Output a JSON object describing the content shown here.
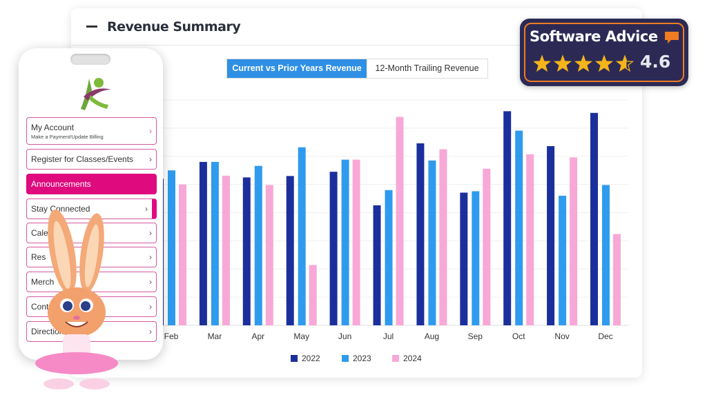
{
  "card": {
    "title": "Revenue Summary",
    "collapse_icon": "minus-icon"
  },
  "toggle": {
    "active": "Current vs Prior Years Revenue",
    "inactive": "12-Month Trailing Revenue"
  },
  "badge": {
    "name": "Software Advice",
    "rating": "4.6",
    "stars": 4.6,
    "accent": "#f07c22"
  },
  "phone": {
    "menu": [
      {
        "label": "My Account",
        "sub": "Make a Payment/Update Billing"
      },
      {
        "label": "Register for Classes/Events"
      },
      {
        "label": "Announcements"
      },
      {
        "label": "Stay Connected"
      },
      {
        "label": "Cale"
      },
      {
        "label": "Res"
      },
      {
        "label": "Merch"
      },
      {
        "label": "Contact"
      },
      {
        "label": "Direction"
      }
    ],
    "accent": "#df0a7e"
  },
  "chart_data": {
    "type": "bar",
    "title": "",
    "xlabel": "",
    "ylabel": "",
    "categories": [
      "Feb",
      "Mar",
      "Apr",
      "May",
      "Jun",
      "Jul",
      "Aug",
      "Sep",
      "Oct",
      "Nov",
      "Dec"
    ],
    "ylim": [
      0,
      8
    ],
    "grid": true,
    "legend": "bottom",
    "series": [
      {
        "name": "2022",
        "color": "#1b2f9c",
        "values": [
          5.2,
          5.8,
          5.25,
          5.3,
          5.45,
          4.26,
          6.46,
          4.71,
          7.6,
          6.36,
          7.54
        ]
      },
      {
        "name": "2023",
        "color": "#2f9bee",
        "values": [
          5.5,
          5.8,
          5.66,
          6.32,
          5.88,
          4.8,
          5.85,
          4.76,
          6.91,
          4.6,
          4.98
        ]
      },
      {
        "name": "2024",
        "color": "#f8a8d6",
        "values": [
          5.0,
          5.31,
          4.98,
          2.14,
          5.88,
          7.4,
          6.25,
          5.56,
          6.07,
          5.96,
          3.24
        ]
      }
    ]
  }
}
